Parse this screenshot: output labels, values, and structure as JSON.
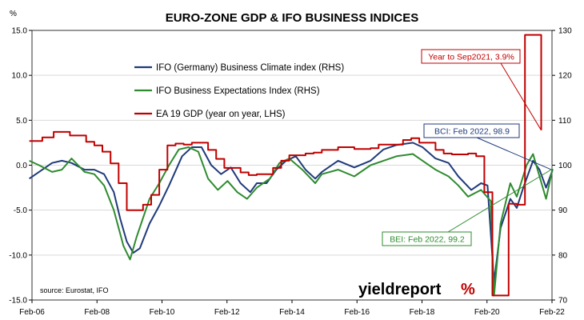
{
  "chart_data": {
    "type": "line",
    "title": "EURO-ZONE GDP & IFO BUSINESS INDICES",
    "left_axis": {
      "label": "%",
      "ylim": [
        -15,
        15
      ],
      "ticks": [
        "15.0",
        "10.0",
        "5.0",
        "0.0",
        "-5.0",
        "-10.0",
        "-15.0"
      ]
    },
    "right_axis": {
      "ylim": [
        70,
        130
      ],
      "ticks": [
        "130",
        "120",
        "110",
        "100",
        "90",
        "80",
        "70"
      ]
    },
    "x_axis": {
      "range": [
        2006.083,
        2022.083
      ],
      "ticks": [
        "Feb-06",
        "Feb-08",
        "Feb-10",
        "Feb-12",
        "Feb-14",
        "Feb-16",
        "Feb-18",
        "Feb-20",
        "Feb-22"
      ]
    },
    "grid": "horizontal",
    "legend_position": "upper-left",
    "series": [
      {
        "name": "IFO (Germany) Business Climate index (RHS)",
        "color": "#1f3a7a",
        "axis": "right",
        "points": [
          [
            2006.0,
            97
          ],
          [
            2006.3,
            98.5
          ],
          [
            2006.7,
            100.5
          ],
          [
            2007.0,
            101
          ],
          [
            2007.3,
            100.5
          ],
          [
            2007.7,
            99
          ],
          [
            2008.0,
            99
          ],
          [
            2008.3,
            98
          ],
          [
            2008.6,
            94
          ],
          [
            2008.8,
            88
          ],
          [
            2009.0,
            83
          ],
          [
            2009.2,
            80.5
          ],
          [
            2009.4,
            81.5
          ],
          [
            2009.7,
            87
          ],
          [
            2010.0,
            91
          ],
          [
            2010.3,
            95.5
          ],
          [
            2010.7,
            102
          ],
          [
            2011.0,
            104
          ],
          [
            2011.3,
            104
          ],
          [
            2011.6,
            100
          ],
          [
            2011.9,
            98
          ],
          [
            2012.2,
            99.5
          ],
          [
            2012.5,
            96
          ],
          [
            2012.8,
            94
          ],
          [
            2013.0,
            96
          ],
          [
            2013.3,
            96
          ],
          [
            2013.6,
            99
          ],
          [
            2013.9,
            101
          ],
          [
            2014.2,
            102
          ],
          [
            2014.5,
            99
          ],
          [
            2014.8,
            97
          ],
          [
            2015.0,
            98.5
          ],
          [
            2015.5,
            101
          ],
          [
            2016.0,
            99.5
          ],
          [
            2016.5,
            101
          ],
          [
            2016.9,
            103.5
          ],
          [
            2017.3,
            104.5
          ],
          [
            2017.8,
            105
          ],
          [
            2018.1,
            104
          ],
          [
            2018.5,
            101.5
          ],
          [
            2018.9,
            100.5
          ],
          [
            2019.2,
            97.5
          ],
          [
            2019.6,
            94.5
          ],
          [
            2019.9,
            96
          ],
          [
            2020.1,
            95.5
          ],
          [
            2020.3,
            74
          ],
          [
            2020.5,
            86
          ],
          [
            2020.8,
            92.5
          ],
          [
            2021.0,
            90.5
          ],
          [
            2021.2,
            95
          ],
          [
            2021.5,
            101
          ],
          [
            2021.7,
            99
          ],
          [
            2021.9,
            95
          ],
          [
            2022.1,
            98.9
          ]
        ]
      },
      {
        "name": "IFO Business Expectations Index (RHS)",
        "color": "#2e8b2e",
        "axis": "right",
        "points": [
          [
            2006.0,
            101
          ],
          [
            2006.3,
            100
          ],
          [
            2006.7,
            98.5
          ],
          [
            2007.0,
            99
          ],
          [
            2007.3,
            101.5
          ],
          [
            2007.7,
            98.5
          ],
          [
            2008.0,
            98
          ],
          [
            2008.3,
            95.5
          ],
          [
            2008.6,
            90
          ],
          [
            2008.9,
            82
          ],
          [
            2009.1,
            79
          ],
          [
            2009.3,
            84
          ],
          [
            2009.7,
            92.5
          ],
          [
            2010.0,
            96
          ],
          [
            2010.3,
            100
          ],
          [
            2010.6,
            103.5
          ],
          [
            2010.9,
            104
          ],
          [
            2011.2,
            103
          ],
          [
            2011.5,
            97
          ],
          [
            2011.8,
            94.5
          ],
          [
            2012.1,
            96.5
          ],
          [
            2012.4,
            94
          ],
          [
            2012.7,
            92.5
          ],
          [
            2013.0,
            95
          ],
          [
            2013.4,
            97
          ],
          [
            2013.7,
            100.5
          ],
          [
            2014.0,
            101.5
          ],
          [
            2014.4,
            99
          ],
          [
            2014.8,
            96
          ],
          [
            2015.0,
            98
          ],
          [
            2015.5,
            99
          ],
          [
            2016.0,
            97.5
          ],
          [
            2016.5,
            100
          ],
          [
            2016.9,
            101
          ],
          [
            2017.3,
            102
          ],
          [
            2017.8,
            102.5
          ],
          [
            2018.1,
            101
          ],
          [
            2018.5,
            99
          ],
          [
            2018.9,
            97.5
          ],
          [
            2019.2,
            95.5
          ],
          [
            2019.5,
            93
          ],
          [
            2019.9,
            94.5
          ],
          [
            2020.2,
            92
          ],
          [
            2020.3,
            71
          ],
          [
            2020.5,
            87
          ],
          [
            2020.8,
            96
          ],
          [
            2021.0,
            93
          ],
          [
            2021.3,
            100
          ],
          [
            2021.5,
            102.5
          ],
          [
            2021.7,
            97.5
          ],
          [
            2021.9,
            92.5
          ],
          [
            2022.1,
            99.2
          ]
        ]
      },
      {
        "name": "EA 19 GDP (year on year, LHS)",
        "color": "#c00000",
        "axis": "left",
        "points": [
          [
            2006.0,
            2.7
          ],
          [
            2006.4,
            3.1
          ],
          [
            2006.75,
            3.7
          ],
          [
            2007.25,
            3.3
          ],
          [
            2007.75,
            2.6
          ],
          [
            2008.0,
            2.2
          ],
          [
            2008.25,
            1.5
          ],
          [
            2008.5,
            0.2
          ],
          [
            2008.75,
            -2.0
          ],
          [
            2009.0,
            -5.0
          ],
          [
            2009.5,
            -4.4
          ],
          [
            2009.75,
            -3.3
          ],
          [
            2010.0,
            -0.5
          ],
          [
            2010.25,
            2.2
          ],
          [
            2010.5,
            2.4
          ],
          [
            2010.75,
            2.3
          ],
          [
            2011.0,
            2.5
          ],
          [
            2011.5,
            1.7
          ],
          [
            2011.75,
            0.7
          ],
          [
            2012.0,
            -0.3
          ],
          [
            2012.5,
            -0.8
          ],
          [
            2012.75,
            -1.1
          ],
          [
            2013.0,
            -1.0
          ],
          [
            2013.5,
            -0.3
          ],
          [
            2013.75,
            0.5
          ],
          [
            2014.0,
            1.1
          ],
          [
            2014.5,
            1.3
          ],
          [
            2014.75,
            1.4
          ],
          [
            2015.0,
            1.7
          ],
          [
            2015.5,
            2.0
          ],
          [
            2016.0,
            1.8
          ],
          [
            2016.5,
            1.9
          ],
          [
            2016.75,
            2.3
          ],
          [
            2017.0,
            2.3
          ],
          [
            2017.5,
            2.8
          ],
          [
            2017.75,
            3.0
          ],
          [
            2018.0,
            2.5
          ],
          [
            2018.5,
            1.7
          ],
          [
            2018.75,
            1.3
          ],
          [
            2019.0,
            1.2
          ],
          [
            2019.5,
            1.3
          ],
          [
            2019.75,
            1.0
          ],
          [
            2020.0,
            -3.0
          ],
          [
            2020.25,
            -14.5
          ],
          [
            2020.5,
            -14.5
          ],
          [
            2020.75,
            -4.3
          ],
          [
            2021.0,
            -4.4
          ],
          [
            2021.25,
            14.5
          ],
          [
            2021.5,
            14.5
          ],
          [
            2021.75,
            3.9
          ]
        ]
      }
    ],
    "annotations": [
      {
        "text": "Year to Sep2021, 3.9%",
        "color": "#c00000"
      },
      {
        "text": "BCI: Feb 2022, 98.9",
        "color": "#1f3a7a"
      },
      {
        "text": "BEI: Feb 2022, 99.2",
        "color": "#2e8b2e"
      }
    ],
    "source": "source: Eurostat, IFO"
  },
  "brand": {
    "part1": "yield",
    "part2": "report",
    "symbol": "%"
  }
}
